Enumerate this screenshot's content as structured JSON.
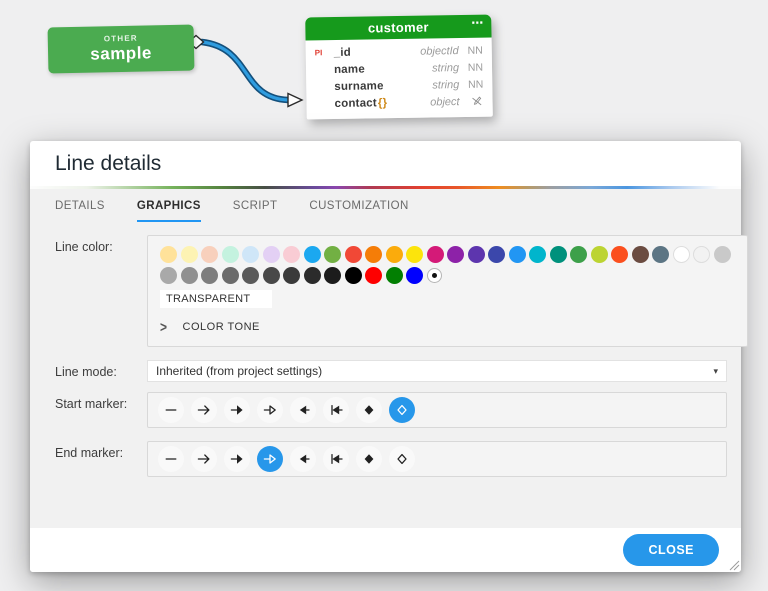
{
  "accent": "#2196f3",
  "diagram": {
    "sample": {
      "badge": "OTHER",
      "name": "sample"
    },
    "customer": {
      "title": "customer",
      "menu": "⋯",
      "rows": [
        {
          "key": "PI",
          "name": "_id",
          "brace": "",
          "type": "objectId",
          "nn": "NN",
          "icon": ""
        },
        {
          "key": "",
          "name": "name",
          "brace": "",
          "type": "string",
          "nn": "NN",
          "icon": ""
        },
        {
          "key": "",
          "name": "surname",
          "brace": "",
          "type": "string",
          "nn": "NN",
          "icon": ""
        },
        {
          "key": "",
          "name": "contact",
          "brace": "{}",
          "type": "object",
          "nn": "",
          "icon": "pencil-slash"
        }
      ]
    }
  },
  "modal": {
    "title": "Line details",
    "tabs": [
      {
        "label": "DETAILS",
        "active": false
      },
      {
        "label": "GRAPHICS",
        "active": true
      },
      {
        "label": "SCRIPT",
        "active": false
      },
      {
        "label": "CUSTOMIZATION",
        "active": false
      }
    ],
    "line_color": {
      "label": "Line color:",
      "palette_row1": [
        "#ffe29a",
        "#fdf3b3",
        "#f8d0bc",
        "#c4f2df",
        "#cfe6f8",
        "#e3d0f4",
        "#f9ccd4",
        "#1ba8f0",
        "#72b043",
        "#f14836",
        "#f57d07",
        "#fbab0c",
        "#fce40c",
        "#d41a78",
        "#8d22a8",
        "#5d35ae",
        "#3b47ab",
        "#2196f3",
        "#00b5cc",
        "#00917c",
        "#3da04a",
        "#bcd432",
        "#fb4f1e",
        "#6b4c41",
        "#5c7584",
        "#ffffff",
        "#f2f2f2",
        "#c9c9c9"
      ],
      "palette_row2": [
        "#a9a9a9",
        "#909090",
        "#7d7d7d",
        "#6b6b6b",
        "#5a5a5a",
        "#484848",
        "#3a3a3a",
        "#2b2b2b",
        "#1c1c1c",
        "#000000",
        "#fe0000",
        "#027f02",
        "#0000fe"
      ],
      "transparent_label": "TRANSPARENT",
      "color_tone_label": "COLOR TONE"
    },
    "line_mode": {
      "label": "Line mode:",
      "value": "Inherited (from project settings)"
    },
    "markers": [
      "none",
      "arrow-open",
      "arrow-filled",
      "triangle-open",
      "triangle-filled",
      "triangle-bar",
      "diamond-filled",
      "diamond-open"
    ],
    "start_marker": {
      "label": "Start marker:",
      "selected_index": 7
    },
    "end_marker": {
      "label": "End marker:",
      "selected_index": 3
    },
    "close_label": "CLOSE"
  }
}
